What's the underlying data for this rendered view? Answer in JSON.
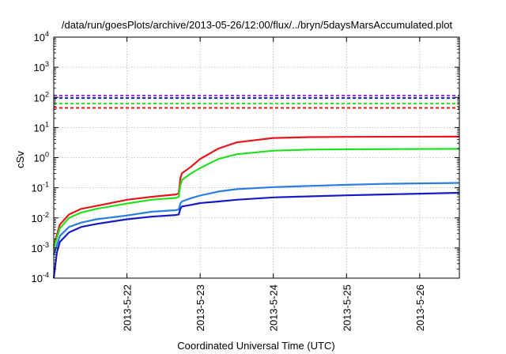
{
  "chart_data": {
    "type": "line",
    "title": "/data/run/goesPlots/archive/2013-05-26/12:00/flux/../bryn/5daysMarsAccumulated.plot",
    "xlabel": "Coordinated Universal Time (UTC)",
    "ylabel": "cSv",
    "y_scale": "log",
    "ylim_exp": [
      -4,
      4
    ],
    "x_start": "2013-05-21 00:00",
    "x_end": "2013-05-26 13:00",
    "x_ticks": [
      "2013-5-22",
      "2013-5-23",
      "2013-5-24",
      "2013-5-25",
      "2013-5-26"
    ],
    "y_ticks": [
      {
        "exp": -4,
        "base": "10",
        "sup": "-4"
      },
      {
        "exp": -3,
        "base": "10",
        "sup": "-3"
      },
      {
        "exp": -2,
        "base": "10",
        "sup": "-2"
      },
      {
        "exp": -1,
        "base": "10",
        "sup": "-1"
      },
      {
        "exp": 0,
        "base": "10",
        "sup": "0"
      },
      {
        "exp": 1,
        "base": "10",
        "sup": "1"
      },
      {
        "exp": 2,
        "base": "10",
        "sup": "2"
      },
      {
        "exp": 3,
        "base": "10",
        "sup": "3"
      },
      {
        "exp": 4,
        "base": "10",
        "sup": "4"
      }
    ],
    "grid": true,
    "series": [
      {
        "color": "#e8161c",
        "points": [
          [
            "2013-05-21 00:00",
            0.0012
          ],
          [
            "2013-05-21 02:00",
            0.006
          ],
          [
            "2013-05-21 05:00",
            0.013
          ],
          [
            "2013-05-21 09:00",
            0.02
          ],
          [
            "2013-05-21 14:00",
            0.025
          ],
          [
            "2013-05-22 00:00",
            0.04
          ],
          [
            "2013-05-22 08:00",
            0.05
          ],
          [
            "2013-05-22 16:00",
            0.06
          ],
          [
            "2013-05-22 17:00",
            0.065
          ],
          [
            "2013-05-22 17:30",
            0.2
          ],
          [
            "2013-05-22 18:00",
            0.3
          ],
          [
            "2013-05-22 21:00",
            0.5
          ],
          [
            "2013-05-23 00:00",
            0.9
          ],
          [
            "2013-05-23 06:00",
            2.0
          ],
          [
            "2013-05-23 12:00",
            3.2
          ],
          [
            "2013-05-24 00:00",
            4.5
          ],
          [
            "2013-05-24 12:00",
            4.8
          ],
          [
            "2013-05-25 00:00",
            4.9
          ],
          [
            "2013-05-26 13:00",
            5.0
          ]
        ]
      },
      {
        "color": "#22e01e",
        "points": [
          [
            "2013-05-21 00:00",
            0.001
          ],
          [
            "2013-05-21 02:00",
            0.0045
          ],
          [
            "2013-05-21 05:00",
            0.01
          ],
          [
            "2013-05-21 09:00",
            0.015
          ],
          [
            "2013-05-21 14:00",
            0.02
          ],
          [
            "2013-05-22 00:00",
            0.03
          ],
          [
            "2013-05-22 08:00",
            0.04
          ],
          [
            "2013-05-22 16:00",
            0.046
          ],
          [
            "2013-05-22 17:00",
            0.05
          ],
          [
            "2013-05-22 17:30",
            0.12
          ],
          [
            "2013-05-22 18:00",
            0.18
          ],
          [
            "2013-05-22 21:00",
            0.3
          ],
          [
            "2013-05-23 00:00",
            0.45
          ],
          [
            "2013-05-23 06:00",
            0.9
          ],
          [
            "2013-05-23 12:00",
            1.3
          ],
          [
            "2013-05-24 00:00",
            1.7
          ],
          [
            "2013-05-24 12:00",
            1.85
          ],
          [
            "2013-05-25 00:00",
            1.9
          ],
          [
            "2013-05-26 13:00",
            1.95
          ]
        ]
      },
      {
        "color": "#2b7ee0",
        "points": [
          [
            "2013-05-21 00:00",
            0.0006
          ],
          [
            "2013-05-21 02:00",
            0.0025
          ],
          [
            "2013-05-21 05:00",
            0.005
          ],
          [
            "2013-05-21 09:00",
            0.007
          ],
          [
            "2013-05-21 14:00",
            0.009
          ],
          [
            "2013-05-22 00:00",
            0.012
          ],
          [
            "2013-05-22 08:00",
            0.016
          ],
          [
            "2013-05-22 16:00",
            0.018
          ],
          [
            "2013-05-22 17:00",
            0.019
          ],
          [
            "2013-05-22 17:30",
            0.03
          ],
          [
            "2013-05-22 18:00",
            0.035
          ],
          [
            "2013-05-22 21:00",
            0.045
          ],
          [
            "2013-05-23 00:00",
            0.055
          ],
          [
            "2013-05-23 06:00",
            0.075
          ],
          [
            "2013-05-23 12:00",
            0.09
          ],
          [
            "2013-05-24 00:00",
            0.105
          ],
          [
            "2013-05-24 12:00",
            0.115
          ],
          [
            "2013-05-25 00:00",
            0.125
          ],
          [
            "2013-05-25 12:00",
            0.135
          ],
          [
            "2013-05-26 13:00",
            0.145
          ]
        ]
      },
      {
        "color": "#1818c8",
        "points": [
          [
            "2013-05-21 00:00",
            0.0001
          ],
          [
            "2013-05-21 01:00",
            0.0007
          ],
          [
            "2013-05-21 02:00",
            0.0016
          ],
          [
            "2013-05-21 05:00",
            0.0033
          ],
          [
            "2013-05-21 09:00",
            0.005
          ],
          [
            "2013-05-21 14:00",
            0.0063
          ],
          [
            "2013-05-22 00:00",
            0.009
          ],
          [
            "2013-05-22 08:00",
            0.011
          ],
          [
            "2013-05-22 16:00",
            0.0125
          ],
          [
            "2013-05-22 17:00",
            0.013
          ],
          [
            "2013-05-22 17:30",
            0.02
          ],
          [
            "2013-05-22 18:00",
            0.024
          ],
          [
            "2013-05-22 21:00",
            0.027
          ],
          [
            "2013-05-23 00:00",
            0.031
          ],
          [
            "2013-05-23 06:00",
            0.035
          ],
          [
            "2013-05-23 12:00",
            0.04
          ],
          [
            "2013-05-24 00:00",
            0.048
          ],
          [
            "2013-05-24 12:00",
            0.052
          ],
          [
            "2013-05-25 00:00",
            0.056
          ],
          [
            "2013-05-25 12:00",
            0.06
          ],
          [
            "2013-05-26 13:00",
            0.068
          ]
        ]
      }
    ],
    "thresholds": [
      {
        "color": "#9a2fd6",
        "value": 115
      },
      {
        "color": "#1818c8",
        "value": 95
      },
      {
        "color": "#22e01e",
        "value": 62
      },
      {
        "color": "#e8161c",
        "value": 45
      }
    ]
  }
}
